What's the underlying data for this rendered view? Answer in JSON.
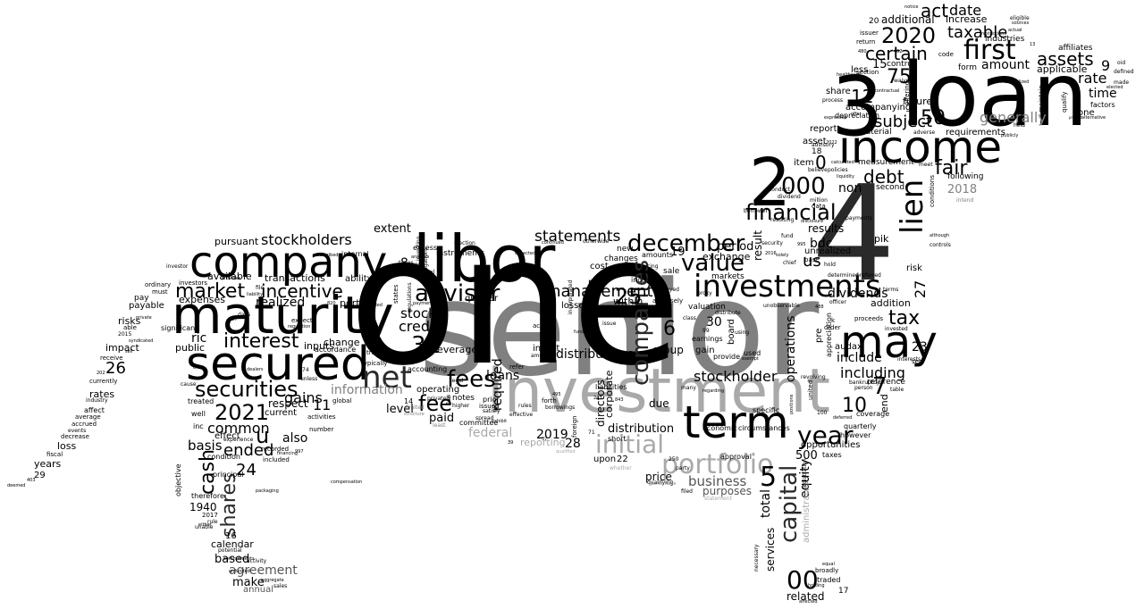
{
  "colors": {
    "background": "#ffffff",
    "black": "#000000",
    "dark": "#2a2a2a",
    "mid": "#555555",
    "gray": "#808080",
    "light": "#a9a9a9"
  },
  "words": {
    "senior": "senior",
    "one": "one",
    "four": "4",
    "loan": "loan",
    "three": "3",
    "two": "2",
    "investment": "investment",
    "libor": "libor",
    "maturity": "maturity",
    "company": "company",
    "secured": "secured",
    "income": "income",
    "term": "term",
    "may": "may",
    "investments": "investments",
    "securities": "securities",
    "financial": "financial",
    "first": "first",
    "value": "value",
    "december": "december",
    "lien": "lien",
    "net": "net",
    "adviser": "adviser",
    "market": "market",
    "interest": "interest",
    "portfolio": "portfolio",
    "initial": "initial",
    "year": "year",
    "n2020": "2020",
    "n2021": "2021",
    "assets": "assets",
    "n000": "000",
    "n00": "00",
    "capital": "capital",
    "companies": "companies",
    "management": "management",
    "incentive": "incentive",
    "stockholders": "stockholders",
    "statements": "statements",
    "tax": "tax",
    "fees": "fees",
    "fee": "fee",
    "cash": "cash",
    "shares": "shares",
    "debt": "debt",
    "fair": "fair",
    "subject": "subject",
    "certain": "certain",
    "taxable": "taxable",
    "n75": "75",
    "n50": "50",
    "n31": "31",
    "n25": "25",
    "n26": "26",
    "n24": "24",
    "n12": "12",
    "n10": "10",
    "n5": "5",
    "n6": "6",
    "n0": "0",
    "u": "u",
    "us": "us",
    "act": "act",
    "date": "date",
    "amount": "amount",
    "generally": "generally",
    "rate": "rate",
    "time": "time",
    "stockholder": "stockholder",
    "including": "including",
    "include": "include",
    "dividends": "dividends",
    "distributions": "distributions",
    "distribution": "distribution",
    "business": "business",
    "loans": "loans",
    "credit": "credit",
    "stock": "stock",
    "paid": "paid",
    "ended": "ended",
    "common": "common",
    "basis": "basis",
    "gains": "gains",
    "also": "also",
    "realized": "realized",
    "information": "information",
    "n2019": "2019",
    "n2018": "2018",
    "federal": "federal",
    "reporting": "reporting",
    "agreement": "agreement",
    "make": "make",
    "based": "based",
    "calendar": "calendar",
    "annual": "annual",
    "n1940": "1940",
    "related": "related",
    "total": "total",
    "equity": "equity",
    "services": "services",
    "purposes": "purposes",
    "price": "price",
    "due": "due",
    "group": "group",
    "gain": "gain",
    "period": "period",
    "exchange": "exchange",
    "result": "result",
    "bdc": "bdc",
    "results": "results",
    "unrealized": "unrealized",
    "non": "non",
    "operations": "operations",
    "required": "required",
    "directors": "directors",
    "corporate": "corporate",
    "level": "level",
    "leverage": "leverage",
    "operating": "operating",
    "extent": "extent",
    "pursuant": "pursuant",
    "available": "available",
    "expenses": "expenses",
    "ric": "ric",
    "public": "public",
    "ability": "ability",
    "transactions": "transactions",
    "change": "change",
    "portion": "portion",
    "respect": "respect",
    "current": "current",
    "inputs": "inputs",
    "effect": "effect",
    "rates": "rates",
    "impact": "impact",
    "risks": "risks",
    "payable": "payable",
    "pay": "pay",
    "loss": "loss",
    "years": "years",
    "additional": "additional",
    "increase": "increase",
    "future": "future",
    "accompanying": "accompanying",
    "requirements": "requirements",
    "applicable": "applicable",
    "form": "form",
    "control": "control",
    "less": "less",
    "share": "share",
    "report": "report",
    "asset": "asset",
    "item": "item",
    "second": "second",
    "following": "following",
    "measurement": "measurement",
    "depreciation": "depreciation",
    "material": "material",
    "industries": "industries",
    "affiliates": "affiliates",
    "factors": "factors",
    "pik": "pik",
    "audax": "audax",
    "addition": "addition",
    "risk": "risk",
    "coverage": "coverage",
    "reference": "reference",
    "quarterly": "quarterly",
    "however": "however",
    "opportunities": "opportunities",
    "end": "end",
    "n7": "7",
    "n9": "9",
    "n11": "11",
    "n15": "15",
    "n19": "19",
    "n23": "23",
    "n27": "27",
    "n28": "28",
    "n30": "30",
    "n500": "500",
    "n8": "8",
    "n16": "16",
    "n17": "17",
    "n18": "18",
    "n20": "20",
    "n29": "29",
    "n22": "22",
    "upon": "upon",
    "within": "within",
    "part": "part",
    "cost": "cost",
    "new": "new",
    "changes": "changes",
    "notes": "notes",
    "committee": "committee",
    "sale": "sale",
    "provide": "provide",
    "used": "used",
    "board": "board",
    "economic": "economic",
    "circumstances": "circumstances",
    "approval": "approval",
    "specific": "specific",
    "valuation": "valuation",
    "earnings": "earnings",
    "markets": "markets",
    "incur": "incur",
    "amounts": "amounts",
    "traded": "traded",
    "broadly": "broadly",
    "taxes": "taxes",
    "invest": "invest",
    "losses": "losses",
    "quarter": "quarter",
    "liabilities": "liabilities",
    "procedures": "procedures",
    "short": "short",
    "internal": "internal",
    "instruments": "instruments",
    "excess": "excess",
    "issued": "issued",
    "refer": "refer",
    "condition": "condition",
    "treated": "treated",
    "therefore": "therefore",
    "principal": "principal",
    "objective": "objective",
    "well": "well",
    "inc": "inc",
    "experience": "experience",
    "recorded": "recorded",
    "included": "included",
    "number": "number",
    "global": "global",
    "accordance": "accordance",
    "activities": "activities",
    "accounting": "accounting",
    "typically": "typically",
    "trade": "trade",
    "expect": "expect",
    "significant": "significant",
    "investors": "investors",
    "investor": "investor",
    "ordinary": "ordinary",
    "must": "must",
    "affect": "affect",
    "average": "average",
    "accrued": "accrued",
    "events": "events",
    "decrease": "decrease",
    "fiscal": "fiscal",
    "receive": "receive",
    "currently": "currently",
    "industry": "industry",
    "able": "able",
    "n2015": "2015",
    "n2017": "2017",
    "potential": "potential",
    "activity": "activity",
    "sales": "sales",
    "aggregate": "aggregate",
    "deemed": "deemed",
    "rule": "rule",
    "unable": "unable",
    "mid": "middle",
    "general": "general",
    "higher": "higher",
    "prior": "prior",
    "satisfy": "satisfy",
    "forth": "forth",
    "borrowings": "borrowings",
    "offering": "offering",
    "qualifying": "qualifying",
    "qualify": "qualify",
    "delayed": "delayed",
    "adversely": "adversely",
    "class": "class",
    "many": "many",
    "party": "party",
    "filed": "filed",
    "statement": "statement",
    "administrator": "administrator",
    "necessary": "necessary",
    "security": "security",
    "data": "data",
    "million": "million",
    "dividend": "dividend",
    "conduct": "conduct",
    "believe": "believe",
    "policies": "policies",
    "payments": "payments",
    "borrower": "borrower",
    "fund": "fund",
    "base": "base",
    "hold": "hold",
    "chief": "chief",
    "determined": "determined",
    "preferred": "preferred",
    "proceeds": "proceeds",
    "order": "order",
    "invested": "invested",
    "pre": "pre",
    "appreciation": "appreciation",
    "revolving": "revolving",
    "united": "united",
    "states": "states",
    "bankruptcy": "bankruptcy",
    "person": "person",
    "table": "table",
    "sec": "sec",
    "terms": "terms",
    "interests": "interests",
    "conditions": "conditions",
    "maintain": "maintain",
    "code": "code",
    "section": "section",
    "issuer": "issuer",
    "return": "return",
    "waivers": "waivers",
    "eligible": "eligible",
    "made": "made",
    "oid": "oid",
    "defined": "defined",
    "elected": "elected",
    "process": "process",
    "held": "held",
    "publicly": "publicly",
    "advisory": "advisory",
    "calculated": "calculated",
    "liquidity": "liquidity",
    "meet": "meet",
    "intend": "intend",
    "expressed": "expressed",
    "offer": "offer",
    "adverse": "adverse",
    "contractual": "contractual",
    "healthcare": "healthcare",
    "controls": "controls",
    "although": "although",
    "resulting": "resulting",
    "unobservable": "unobservable",
    "collateral": "collateral",
    "fixed": "fixed",
    "attributable": "attributable",
    "respectively": "respectively",
    "without": "without",
    "borrowers": "borrowers",
    "restrictions": "restrictions",
    "n2022": "2022",
    "n100": "100",
    "n14": "14",
    "n74": "74",
    "n99": "99",
    "n250": "250",
    "n495": "495",
    "n37": "37",
    "n39": "39",
    "n497": "497",
    "n820": "820",
    "n488": "488",
    "n2016": "2016",
    "n995": "995",
    "n13": "13",
    "n402": "402",
    "n480": "480",
    "n403": "403",
    "n243": "243",
    "n843": "843",
    "n71": "71",
    "n997": "997",
    "n202": "202",
    "k": "k",
    "file": "file",
    "days": "days",
    "unless": "unless",
    "elect": "elect",
    "cause": "cause",
    "payment": "payment",
    "limited": "limited",
    "least": "least",
    "spread": "spread",
    "structure": "structure",
    "effective": "effective",
    "rules": "rules",
    "relevant": "relevant",
    "exhibit": "exhibit",
    "legal": "legal",
    "whether": "whether",
    "investing": "investing",
    "types": "types",
    "election": "election",
    "shall": "shall",
    "flow": "flow",
    "privately": "privately",
    "incorporated": "incorporated",
    "otherwise": "otherwise",
    "issue": "issue",
    "distribute": "distribute",
    "using": "using",
    "regarding": "regarding",
    "funds": "funds",
    "foreign": "foreign",
    "termination": "termination",
    "obligations": "obligations",
    "regulations": "regulations",
    "continued": "continued",
    "pricing": "pricing",
    "proxy": "proxy",
    "amended": "amended",
    "active": "active",
    "subsequent": "subsequent",
    "purchase": "purchase",
    "equal": "equal",
    "holding": "holding",
    "affected": "affected",
    "percentage": "percentage",
    "qualified": "qualified",
    "registration": "registration",
    "officer": "officer",
    "positions": "positions",
    "deferred": "deferred",
    "annualized": "annualized",
    "sources": "sources",
    "actual": "actual",
    "notice": "notice",
    "alternative": "alternative",
    "prompt": "prompt",
    "n1940b": "1940",
    "compensation": "compensation",
    "described": "described",
    "packaging": "packaging",
    "recent": "recent",
    "capable": "capable",
    "sell": "sell",
    "either": "either",
    "expected": "expected",
    "analysis": "analysis",
    "exempt": "exempt",
    "syndicated": "syndicated",
    "private": "private",
    "provides": "provides",
    "liability": "liability",
    "dealers": "dealers",
    "regulation": "regulation",
    "financing": "financing",
    "commitments": "commitments",
    "unfunded": "unfunded",
    "provided": "provided",
    "gross": "gross",
    "disclosure": "disclosure",
    "prepared": "prepared",
    "approximately": "approximately",
    "solely": "solely"
  }
}
